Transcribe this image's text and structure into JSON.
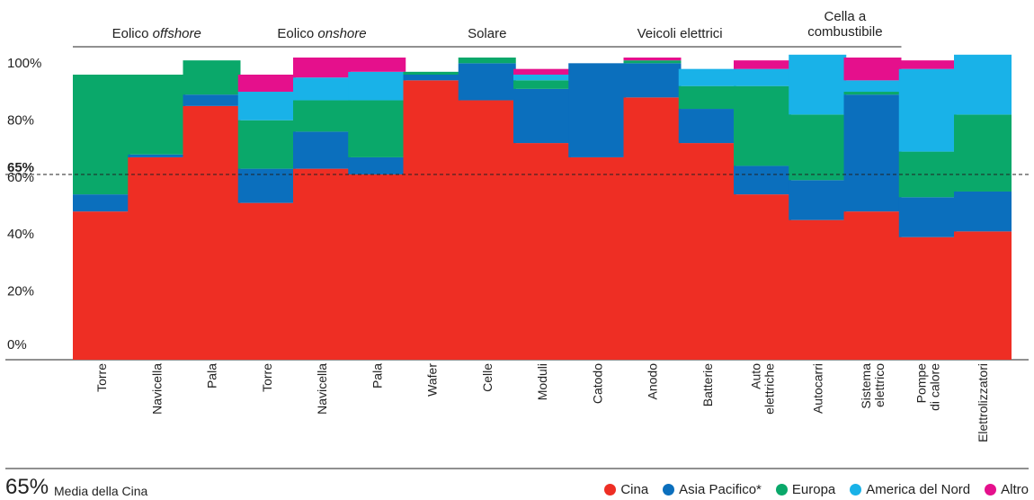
{
  "chart_data": {
    "type": "bar",
    "stacked": true,
    "ylim": [
      0,
      100
    ],
    "yticks": [
      "0%",
      "20%",
      "40%",
      "60%",
      "80%",
      "100%"
    ],
    "reference_line": {
      "value": 65,
      "label": "65%"
    },
    "groups": [
      {
        "title": "Eolico ",
        "title_italic": "offshore",
        "categories": [
          "Torre",
          "Navicella",
          "Pala"
        ]
      },
      {
        "title": "Eolico ",
        "title_italic": "onshore",
        "categories": [
          "Torre",
          "Navicella",
          "Pala"
        ]
      },
      {
        "title": "Solare",
        "title_italic": "",
        "categories": [
          "Wafer",
          "Celle",
          "Moduli"
        ]
      },
      {
        "title": "Veicoli elettrici",
        "title_italic": "",
        "categories": [
          "Catodo",
          "Anodo",
          "Batterie",
          "Auto elettriche"
        ]
      },
      {
        "title": "Cella a combustibile",
        "title_italic": "",
        "categories": [
          "Autocarri",
          "Sistema elettrico"
        ]
      },
      {
        "title": "",
        "title_italic": "",
        "categories": [
          "Pompe di calore"
        ]
      },
      {
        "title": "",
        "title_italic": "",
        "categories": [
          "Elettrolizzatori"
        ]
      }
    ],
    "categories": [
      "Torre",
      "Navicella",
      "Pala",
      "Torre",
      "Navicella",
      "Pala",
      "Wafer",
      "Celle",
      "Moduli",
      "Catodo",
      "Anodo",
      "Batterie",
      "Auto elettriche",
      "Autocarri",
      "Sistema elettrico",
      "Pompe di calore",
      "Elettrolizzatori"
    ],
    "series": [
      {
        "name": "Cina",
        "color": "#ee2e24",
        "values": [
          52,
          71,
          89,
          55,
          67,
          65,
          98,
          91,
          76,
          71,
          92,
          76,
          58,
          49,
          52,
          43,
          45
        ]
      },
      {
        "name": "Asia Pacifico*",
        "color": "#0b6fbd",
        "values": [
          6,
          1,
          4,
          12,
          13,
          6,
          2,
          13,
          19,
          33,
          12,
          12,
          10,
          14,
          41,
          14,
          14
        ]
      },
      {
        "name": "Europa",
        "color": "#0aa86a",
        "values": [
          42,
          28,
          12,
          17,
          11,
          20,
          1,
          2,
          3,
          0,
          1,
          8,
          28,
          23,
          1,
          16,
          27
        ]
      },
      {
        "name": "America del Nord",
        "color": "#19b2e8",
        "values": [
          0,
          0,
          0,
          10,
          8,
          10,
          0,
          0,
          2,
          0,
          0,
          6,
          6,
          21,
          4,
          29,
          21
        ]
      },
      {
        "name": "Altro",
        "color": "#e5108c",
        "values": [
          0,
          0,
          0,
          6,
          7,
          5,
          0,
          0,
          2,
          0,
          1,
          0,
          3,
          0,
          8,
          3,
          0
        ]
      }
    ]
  },
  "footer": {
    "avg_value": "65%",
    "avg_label": "Media della Cina"
  }
}
